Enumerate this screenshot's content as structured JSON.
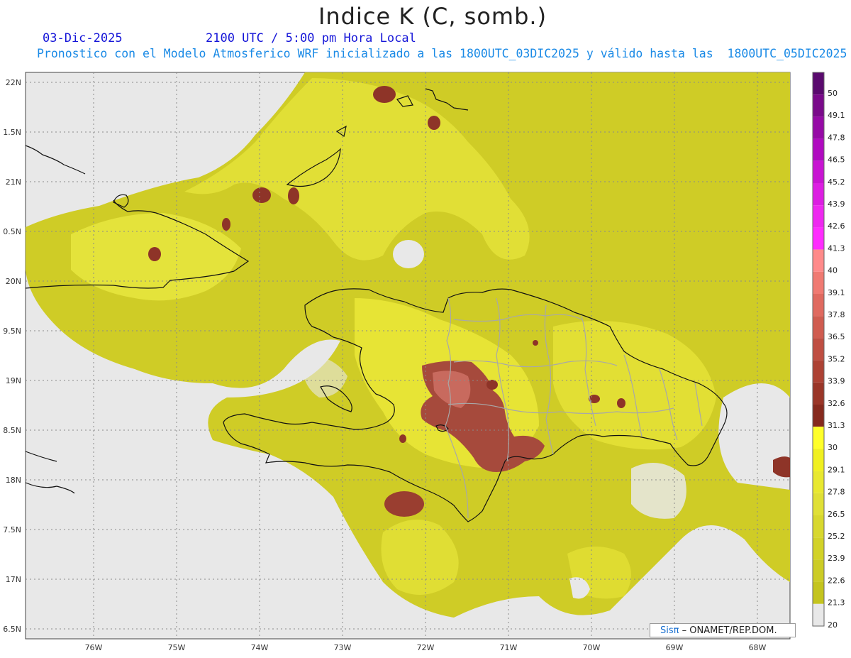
{
  "title": "Indice K (C, somb.)",
  "date": "03-Dic-2025",
  "valid_time": "2100 UTC / 5:00 pm Hora Local",
  "description": "Pronostico con el Modelo Atmosferico WRF inicializado a las 1800UTC_03DIC2025 y válido hasta las  1800UTC_05DIC2025",
  "credit": {
    "brand": "Sisπ",
    "text": " – ONAMET/REP.DOM."
  },
  "lat_labels": [
    "22N",
    "1.5N",
    "21N",
    "0.5N",
    "20N",
    "9.5N",
    "19N",
    "8.5N",
    "18N",
    "7.5N",
    "17N",
    "6.5N"
  ],
  "lon_labels": [
    "76W",
    "75W",
    "74W",
    "73W",
    "72W",
    "71W",
    "70W",
    "69W",
    "68W"
  ],
  "colorbar": {
    "levels": [
      "50",
      "49.1",
      "47.8",
      "46.5",
      "45.2",
      "43.9",
      "42.6",
      "41.3",
      "40",
      "39.1",
      "37.8",
      "36.5",
      "35.2",
      "33.9",
      "32.6",
      "31.3",
      "30",
      "29.1",
      "27.8",
      "26.5",
      "25.2",
      "23.9",
      "22.6",
      "21.3",
      "20"
    ],
    "colors": [
      "#5a0a6e",
      "#7a0a8a",
      "#960aa6",
      "#b00ac0",
      "#c814d2",
      "#dc1ee2",
      "#ee28f0",
      "#ff2cff",
      "#ff8a8a",
      "#f07a72",
      "#e06a60",
      "#d05c50",
      "#bf4e42",
      "#ad4234",
      "#9a3628",
      "#862a1e",
      "#ffff2a",
      "#f0f020",
      "#e8e830",
      "#e0e036",
      "#d8d82e",
      "#d2d228",
      "#cccc26",
      "#c4c41e",
      "#e8e8e8"
    ]
  },
  "legend_colors": {
    "no_data": "#e8e8e8",
    "brown": "#8e3a2e",
    "olive": "#c8c41e",
    "yellow": "#e6e636"
  }
}
